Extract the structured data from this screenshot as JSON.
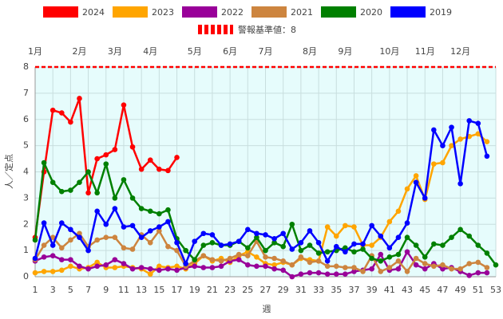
{
  "chart_data": {
    "type": "line",
    "x_label": "週",
    "y_label": "人／定点",
    "x": [
      1,
      2,
      3,
      4,
      5,
      6,
      7,
      8,
      9,
      10,
      11,
      12,
      13,
      14,
      15,
      16,
      17,
      18,
      19,
      20,
      21,
      22,
      23,
      24,
      25,
      26,
      27,
      28,
      29,
      30,
      31,
      32,
      33,
      34,
      35,
      36,
      37,
      38,
      39,
      40,
      41,
      42,
      43,
      44,
      45,
      46,
      47,
      48,
      49,
      50,
      51,
      52,
      53
    ],
    "xlim": [
      1,
      53
    ],
    "xticks": [
      1,
      3,
      5,
      7,
      9,
      11,
      13,
      15,
      17,
      19,
      21,
      23,
      25,
      27,
      29,
      31,
      33,
      35,
      37,
      39,
      41,
      43,
      45,
      47,
      49,
      51,
      53
    ],
    "ylim": [
      0,
      8
    ],
    "yticks": [
      0,
      1,
      2,
      3,
      4,
      5,
      6,
      7,
      8
    ],
    "grid": true,
    "month_labels": [
      {
        "x": 1,
        "label": "1月"
      },
      {
        "x": 6,
        "label": "2月"
      },
      {
        "x": 10,
        "label": "3月"
      },
      {
        "x": 14,
        "label": "4月"
      },
      {
        "x": 19,
        "label": "5月"
      },
      {
        "x": 23,
        "label": "6月"
      },
      {
        "x": 27,
        "label": "7月"
      },
      {
        "x": 32,
        "label": "8月"
      },
      {
        "x": 36,
        "label": "9月"
      },
      {
        "x": 41,
        "label": "10月"
      },
      {
        "x": 45,
        "label": "11月"
      },
      {
        "x": 49,
        "label": "12月"
      }
    ],
    "threshold": {
      "value": 8,
      "label": "警報基準値：8",
      "color": "#ff0000"
    },
    "series": [
      {
        "name": "2024",
        "color": "#ff0000",
        "values": [
          1.5,
          4.0,
          6.35,
          6.25,
          5.9,
          6.8,
          3.2,
          4.5,
          4.65,
          4.85,
          6.55,
          4.95,
          4.1,
          4.45,
          4.1,
          4.05,
          4.55,
          null,
          null,
          null,
          null,
          null,
          null,
          null,
          null,
          null,
          null,
          null,
          null,
          null,
          null,
          null,
          null,
          null,
          null,
          null,
          null,
          null,
          null,
          null,
          null,
          null,
          null,
          null,
          null,
          null,
          null,
          null,
          null,
          null,
          null,
          null,
          null
        ]
      },
      {
        "name": "2023",
        "color": "#ffa500",
        "values": [
          0.15,
          0.2,
          0.2,
          0.25,
          0.4,
          0.3,
          0.35,
          0.55,
          0.35,
          0.35,
          0.4,
          0.35,
          0.3,
          0.1,
          0.4,
          0.35,
          0.4,
          0.3,
          0.5,
          0.8,
          0.6,
          0.7,
          0.55,
          0.8,
          0.95,
          0.75,
          0.5,
          0.45,
          0.55,
          0.45,
          0.7,
          0.65,
          0.6,
          1.9,
          1.55,
          1.95,
          1.9,
          1.2,
          1.2,
          1.5,
          2.1,
          2.5,
          3.35,
          3.85,
          2.95,
          4.3,
          4.35,
          5.0,
          5.25,
          5.35,
          5.45,
          5.15,
          null
        ]
      },
      {
        "name": "2022",
        "color": "#990099",
        "values": [
          0.6,
          0.75,
          0.8,
          0.65,
          0.65,
          0.4,
          0.3,
          0.4,
          0.45,
          0.65,
          0.5,
          0.3,
          0.35,
          0.3,
          0.25,
          0.3,
          0.25,
          0.35,
          0.4,
          0.35,
          0.35,
          0.4,
          0.6,
          0.65,
          0.45,
          0.4,
          0.4,
          0.3,
          0.25,
          0.0,
          0.1,
          0.15,
          0.15,
          0.1,
          0.1,
          0.1,
          0.2,
          0.25,
          0.3,
          0.85,
          0.25,
          0.3,
          0.95,
          0.45,
          0.3,
          0.5,
          0.3,
          0.35,
          0.2,
          0.05,
          0.15,
          0.15,
          null
        ]
      },
      {
        "name": "2021",
        "color": "#cd853f",
        "values": [
          0.65,
          1.2,
          1.5,
          1.1,
          1.4,
          1.65,
          1.15,
          1.4,
          1.5,
          1.5,
          1.1,
          1.05,
          1.6,
          1.3,
          1.75,
          1.15,
          1.0,
          0.4,
          0.6,
          0.8,
          0.65,
          0.6,
          0.7,
          0.85,
          0.8,
          1.35,
          0.75,
          0.7,
          0.6,
          0.45,
          0.75,
          0.55,
          0.6,
          0.4,
          0.4,
          0.35,
          0.35,
          0.2,
          0.8,
          0.2,
          0.35,
          0.6,
          0.2,
          0.7,
          0.5,
          0.4,
          0.45,
          0.3,
          0.3,
          0.5,
          0.55,
          0.35,
          null
        ]
      },
      {
        "name": "2020",
        "color": "#008000",
        "values": [
          1.4,
          4.35,
          3.6,
          3.25,
          3.3,
          3.6,
          4.0,
          3.2,
          4.3,
          3.0,
          3.7,
          3.0,
          2.6,
          2.5,
          2.4,
          2.55,
          1.45,
          1.0,
          0.65,
          1.2,
          1.3,
          1.2,
          1.2,
          1.35,
          1.1,
          1.5,
          1.0,
          1.3,
          1.15,
          2.0,
          1.0,
          1.2,
          0.9,
          0.95,
          1.0,
          1.1,
          0.95,
          1.05,
          0.7,
          0.6,
          0.75,
          0.85,
          1.5,
          1.2,
          0.75,
          1.25,
          1.2,
          1.5,
          1.8,
          1.55,
          1.2,
          0.9,
          0.45
        ]
      },
      {
        "name": "2019",
        "color": "#0000ff",
        "values": [
          0.7,
          2.05,
          1.2,
          2.05,
          1.8,
          1.5,
          1.0,
          2.5,
          2.0,
          2.6,
          1.9,
          1.95,
          1.5,
          1.75,
          1.9,
          2.1,
          1.3,
          0.5,
          1.35,
          1.65,
          1.6,
          1.2,
          1.25,
          1.35,
          1.8,
          1.65,
          1.6,
          1.45,
          1.65,
          1.05,
          1.3,
          1.75,
          1.3,
          0.6,
          1.15,
          0.95,
          1.25,
          1.25,
          1.95,
          1.55,
          1.1,
          1.5,
          2.05,
          3.6,
          3.0,
          5.6,
          5.0,
          5.7,
          3.55,
          5.95,
          5.85,
          4.6,
          null
        ]
      }
    ]
  }
}
